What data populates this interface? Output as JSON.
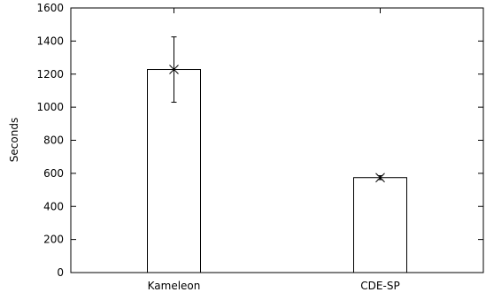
{
  "chart_data": {
    "type": "bar",
    "categories": [
      "Kameleon",
      "CDE-SP"
    ],
    "values": [
      1228,
      574
    ],
    "errors": [
      {
        "low": 1030,
        "high": 1425
      },
      {
        "low": 562,
        "high": 586
      }
    ],
    "title": "",
    "xlabel": "",
    "ylabel": "Seconds",
    "ylim": [
      0,
      1600
    ],
    "yticks": [
      0,
      200,
      400,
      600,
      800,
      1000,
      1200,
      1400,
      1600
    ],
    "grid": false,
    "bar_fill": "#ffffff",
    "stroke_color": "#000000"
  }
}
